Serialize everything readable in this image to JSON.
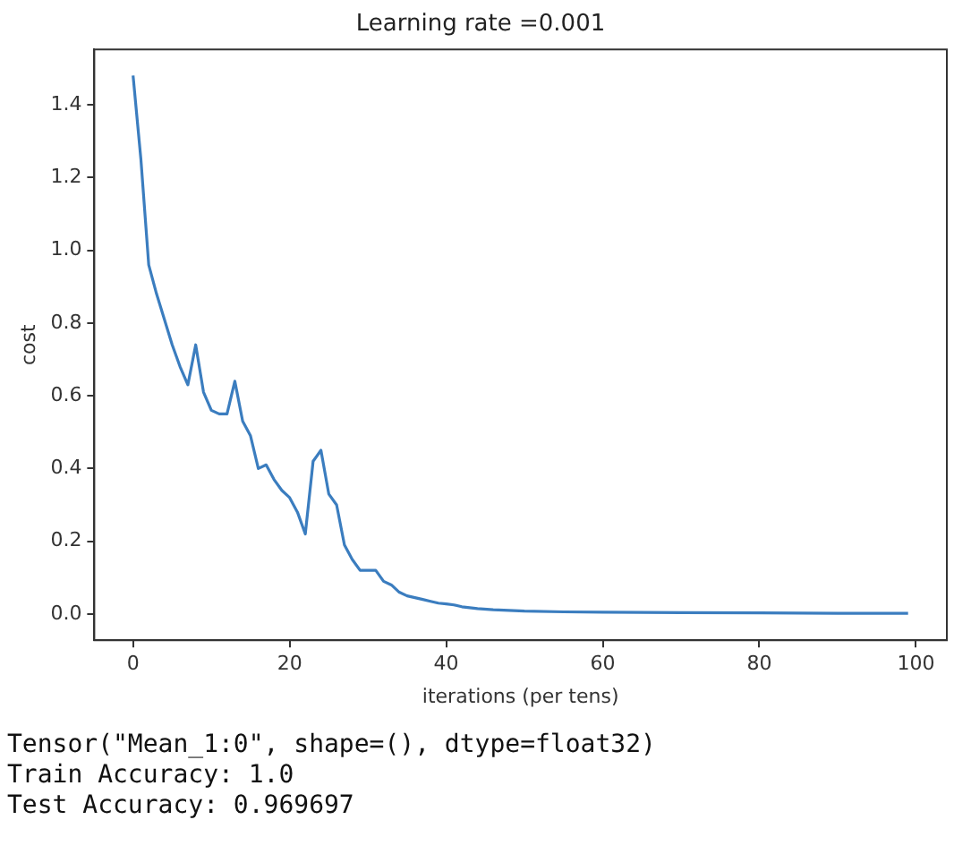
{
  "chart_data": {
    "type": "line",
    "title": "Learning rate =0.001",
    "xlabel": "iterations (per tens)",
    "ylabel": "cost",
    "x": [
      0,
      1,
      2,
      3,
      4,
      5,
      6,
      7,
      8,
      9,
      10,
      11,
      12,
      13,
      14,
      15,
      16,
      17,
      18,
      19,
      20,
      21,
      22,
      23,
      24,
      25,
      26,
      27,
      28,
      29,
      30,
      31,
      32,
      33,
      34,
      35,
      36,
      37,
      38,
      39,
      40,
      41,
      42,
      44,
      46,
      50,
      55,
      60,
      70,
      80,
      90,
      99
    ],
    "series": [
      {
        "color": "#3b7dbf",
        "values": [
          1.48,
          1.25,
          0.96,
          0.88,
          0.81,
          0.74,
          0.68,
          0.63,
          0.74,
          0.61,
          0.56,
          0.55,
          0.55,
          0.64,
          0.53,
          0.49,
          0.4,
          0.41,
          0.37,
          0.34,
          0.32,
          0.28,
          0.22,
          0.42,
          0.45,
          0.33,
          0.3,
          0.19,
          0.15,
          0.12,
          0.12,
          0.12,
          0.09,
          0.08,
          0.06,
          0.05,
          0.045,
          0.04,
          0.035,
          0.03,
          0.028,
          0.025,
          0.02,
          0.015,
          0.012,
          0.008,
          0.006,
          0.005,
          0.004,
          0.003,
          0.002,
          0.002
        ]
      }
    ],
    "xlim": [
      -4.95,
      103.95
    ],
    "xticks": [
      0,
      20,
      40,
      60,
      80,
      100
    ],
    "ylim": [
      -0.072,
      1.552
    ],
    "yticks": [
      {
        "value": 0,
        "label": "0.0"
      },
      {
        "value": 0.2,
        "label": "0.2"
      },
      {
        "value": 0.4,
        "label": "0.4"
      },
      {
        "value": 0.6,
        "label": "0.6"
      },
      {
        "value": 0.8,
        "label": "0.8"
      },
      {
        "value": 1,
        "label": "1.0"
      },
      {
        "value": 1.2,
        "label": "1.2"
      },
      {
        "value": 1.4,
        "label": "1.4"
      }
    ],
    "grid": false,
    "legend": false,
    "marker": "none",
    "line_style": "solid",
    "annotations": [
      "Tensor(\"Mean_1:0\", shape=(), dtype=float32)",
      "Train Accuracy: 1.0",
      "Test Accuracy: 0.969697"
    ]
  }
}
